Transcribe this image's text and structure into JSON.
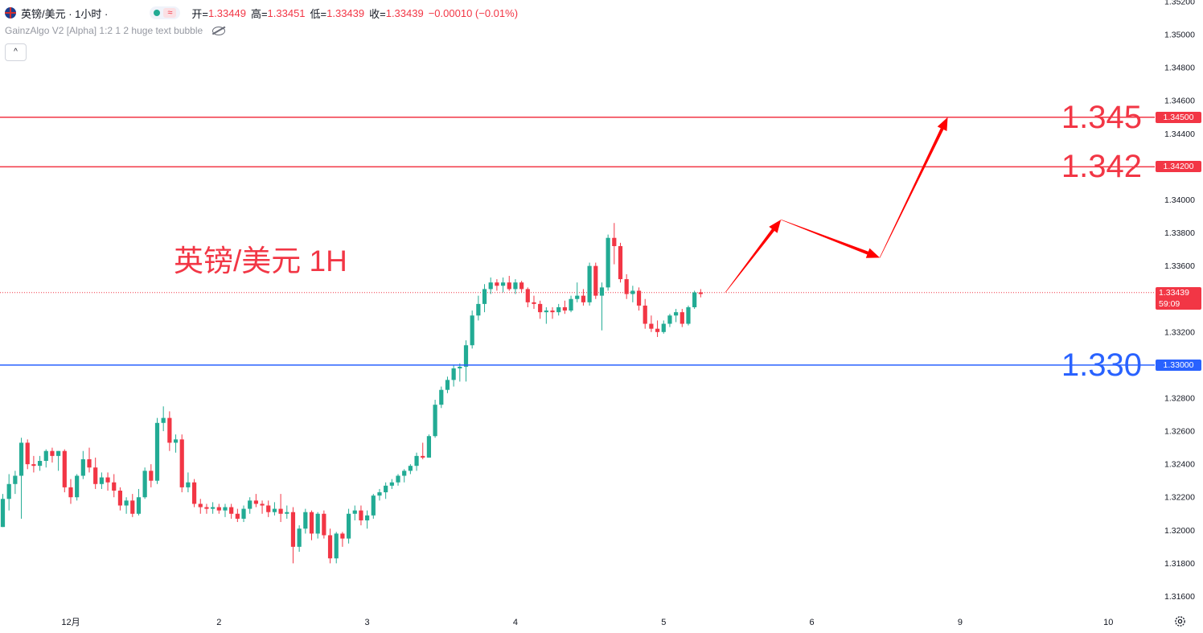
{
  "header": {
    "symbol": "英镑/美元 · 1小时 ·",
    "ohlc": [
      {
        "label": "开=",
        "value": "1.33449"
      },
      {
        "label": "高=",
        "value": "1.33451"
      },
      {
        "label": "低=",
        "value": "1.33439"
      },
      {
        "label": "收=",
        "value": "1.33439"
      }
    ],
    "change": "−0.00010 (−0.01%)",
    "indicator": "GainzAlgo V2 [Alpha] 1:2 1 2 huge text bubble",
    "collapse_glyph": "^"
  },
  "annotation_text": "英镑/美元 1H",
  "colors": {
    "up": "#22ab94",
    "down": "#f23645",
    "resistance": "#f23645",
    "support": "#2962ff",
    "arrow": "#ff0000",
    "axis_text": "#131722",
    "grid": "#ffffff"
  },
  "icons": [
    "uk-flag-icon",
    "eye-slash-icon",
    "chevron-up-icon",
    "gear-icon"
  ],
  "chart_data": {
    "type": "candlestick",
    "title": "英镑/美元 1H",
    "xlabel": "",
    "ylabel": "",
    "ylim": [
      1.315,
      1.352
    ],
    "y_ticks": [
      "1.35200",
      "1.35000",
      "1.34800",
      "1.34600",
      "1.34400",
      "1.34000",
      "1.33800",
      "1.33600",
      "1.33200",
      "1.32800",
      "1.32600",
      "1.32400",
      "1.32200",
      "1.32000",
      "1.31800",
      "1.31600"
    ],
    "x_ticks": [
      {
        "label": "12月",
        "candle_index": 11
      },
      {
        "label": "2",
        "candle_index": 35
      },
      {
        "label": "3",
        "candle_index": 59
      },
      {
        "label": "4",
        "candle_index": 83
      },
      {
        "label": "5",
        "candle_index": 107
      },
      {
        "label": "6",
        "candle_index": 131
      },
      {
        "label": "9",
        "candle_index": 155
      },
      {
        "label": "10",
        "candle_index": 179
      }
    ],
    "candles": [
      [
        1.3202,
        1.3222,
        1.3202,
        1.3219
      ],
      [
        1.3219,
        1.3234,
        1.3212,
        1.3228
      ],
      [
        1.3228,
        1.3236,
        1.3222,
        1.3233
      ],
      [
        1.3233,
        1.3256,
        1.3207,
        1.3253
      ],
      [
        1.3253,
        1.3255,
        1.3237,
        1.324
      ],
      [
        1.324,
        1.3245,
        1.3235,
        1.3239
      ],
      [
        1.3239,
        1.3245,
        1.3236,
        1.3242
      ],
      [
        1.3242,
        1.3249,
        1.3238,
        1.3248
      ],
      [
        1.3248,
        1.325,
        1.3241,
        1.3245
      ],
      [
        1.3245,
        1.3248,
        1.3236,
        1.3248
      ],
      [
        1.3248,
        1.3249,
        1.3223,
        1.3226
      ],
      [
        1.3226,
        1.3231,
        1.3216,
        1.322
      ],
      [
        1.322,
        1.3234,
        1.3218,
        1.3233
      ],
      [
        1.3233,
        1.3248,
        1.3231,
        1.3243
      ],
      [
        1.3243,
        1.325,
        1.3235,
        1.3238
      ],
      [
        1.3238,
        1.3244,
        1.3225,
        1.3228
      ],
      [
        1.3228,
        1.3235,
        1.3225,
        1.3232
      ],
      [
        1.3232,
        1.3235,
        1.3224,
        1.3229
      ],
      [
        1.3229,
        1.3234,
        1.322,
        1.3224
      ],
      [
        1.3224,
        1.3226,
        1.3212,
        1.3215
      ],
      [
        1.3215,
        1.322,
        1.321,
        1.3218
      ],
      [
        1.3218,
        1.3222,
        1.3208,
        1.321
      ],
      [
        1.321,
        1.3225,
        1.3209,
        1.322
      ],
      [
        1.322,
        1.3238,
        1.3219,
        1.3236
      ],
      [
        1.3236,
        1.324,
        1.3226,
        1.323
      ],
      [
        1.323,
        1.3268,
        1.3228,
        1.3265
      ],
      [
        1.3265,
        1.3275,
        1.326,
        1.3268
      ],
      [
        1.3268,
        1.3272,
        1.3248,
        1.3253
      ],
      [
        1.3253,
        1.3258,
        1.3247,
        1.3255
      ],
      [
        1.3255,
        1.3258,
        1.3223,
        1.3226
      ],
      [
        1.3226,
        1.3235,
        1.3223,
        1.3229
      ],
      [
        1.3229,
        1.3231,
        1.3214,
        1.3216
      ],
      [
        1.3216,
        1.3219,
        1.321,
        1.3214
      ],
      [
        1.3214,
        1.3216,
        1.321,
        1.3213
      ],
      [
        1.3213,
        1.3217,
        1.321,
        1.3214
      ],
      [
        1.3214,
        1.3216,
        1.321,
        1.3212
      ],
      [
        1.3212,
        1.3216,
        1.3208,
        1.3214
      ],
      [
        1.3214,
        1.3216,
        1.3207,
        1.321
      ],
      [
        1.321,
        1.3213,
        1.3205,
        1.3207
      ],
      [
        1.3207,
        1.3215,
        1.3205,
        1.3213
      ],
      [
        1.3213,
        1.322,
        1.321,
        1.3218
      ],
      [
        1.3218,
        1.3222,
        1.3214,
        1.3216
      ],
      [
        1.3216,
        1.3218,
        1.321,
        1.3215
      ],
      [
        1.3215,
        1.3218,
        1.3208,
        1.3211
      ],
      [
        1.3211,
        1.3217,
        1.3209,
        1.3213
      ],
      [
        1.3213,
        1.3222,
        1.3205,
        1.321
      ],
      [
        1.321,
        1.3215,
        1.3207,
        1.3211
      ],
      [
        1.3211,
        1.3214,
        1.318,
        1.319
      ],
      [
        1.319,
        1.3203,
        1.3187,
        1.3201
      ],
      [
        1.3201,
        1.3213,
        1.3198,
        1.3211
      ],
      [
        1.3211,
        1.3212,
        1.3194,
        1.3198
      ],
      [
        1.3198,
        1.3211,
        1.3195,
        1.321
      ],
      [
        1.321,
        1.3212,
        1.3195,
        1.3197
      ],
      [
        1.3197,
        1.3201,
        1.318,
        1.3183
      ],
      [
        1.3183,
        1.3199,
        1.318,
        1.3198
      ],
      [
        1.3198,
        1.3199,
        1.319,
        1.3195
      ],
      [
        1.3195,
        1.3213,
        1.3192,
        1.321
      ],
      [
        1.321,
        1.3215,
        1.3206,
        1.3212
      ],
      [
        1.3212,
        1.3215,
        1.3203,
        1.3206
      ],
      [
        1.3206,
        1.3212,
        1.3201,
        1.3209
      ],
      [
        1.3209,
        1.3222,
        1.3207,
        1.3221
      ],
      [
        1.3221,
        1.3225,
        1.3218,
        1.3223
      ],
      [
        1.3223,
        1.3229,
        1.3219,
        1.3227
      ],
      [
        1.3227,
        1.3231,
        1.3225,
        1.3229
      ],
      [
        1.3229,
        1.3234,
        1.3227,
        1.3233
      ],
      [
        1.3233,
        1.3237,
        1.3229,
        1.3236
      ],
      [
        1.3236,
        1.324,
        1.3234,
        1.3239
      ],
      [
        1.3239,
        1.3247,
        1.3236,
        1.3245
      ],
      [
        1.3245,
        1.3253,
        1.3243,
        1.3244
      ],
      [
        1.3244,
        1.3258,
        1.3244,
        1.3257
      ],
      [
        1.3257,
        1.3279,
        1.3256,
        1.3276
      ],
      [
        1.3276,
        1.3287,
        1.3274,
        1.3285
      ],
      [
        1.3285,
        1.3293,
        1.3283,
        1.3291
      ],
      [
        1.3291,
        1.33,
        1.3287,
        1.3298
      ],
      [
        1.3298,
        1.3301,
        1.329,
        1.3299
      ],
      [
        1.3299,
        1.3315,
        1.329,
        1.3312
      ],
      [
        1.3312,
        1.3333,
        1.331,
        1.333
      ],
      [
        1.333,
        1.3342,
        1.3327,
        1.3337
      ],
      [
        1.3337,
        1.3349,
        1.3332,
        1.3346
      ],
      [
        1.3346,
        1.3353,
        1.3343,
        1.335
      ],
      [
        1.335,
        1.3352,
        1.3345,
        1.3348
      ],
      [
        1.3348,
        1.3353,
        1.3344,
        1.335
      ],
      [
        1.335,
        1.3354,
        1.3345,
        1.3346
      ],
      [
        1.3346,
        1.3352,
        1.3343,
        1.335
      ],
      [
        1.335,
        1.3351,
        1.3344,
        1.3346
      ],
      [
        1.3346,
        1.3347,
        1.3335,
        1.3338
      ],
      [
        1.3338,
        1.3342,
        1.3334,
        1.3337
      ],
      [
        1.3337,
        1.3339,
        1.3328,
        1.3332
      ],
      [
        1.3332,
        1.3335,
        1.3325,
        1.3333
      ],
      [
        1.3333,
        1.3335,
        1.3328,
        1.3332
      ],
      [
        1.3332,
        1.3337,
        1.333,
        1.3335
      ],
      [
        1.3335,
        1.3339,
        1.3331,
        1.3333
      ],
      [
        1.3333,
        1.3342,
        1.3332,
        1.334
      ],
      [
        1.334,
        1.335,
        1.3338,
        1.3342
      ],
      [
        1.3342,
        1.3346,
        1.3336,
        1.3338
      ],
      [
        1.3338,
        1.3362,
        1.3336,
        1.336
      ],
      [
        1.336,
        1.3362,
        1.334,
        1.3342
      ],
      [
        1.3342,
        1.335,
        1.3321,
        1.3347
      ],
      [
        1.3347,
        1.3379,
        1.3345,
        1.3377
      ],
      [
        1.3377,
        1.3386,
        1.3361,
        1.3372
      ],
      [
        1.3372,
        1.3374,
        1.335,
        1.3352
      ],
      [
        1.3352,
        1.3355,
        1.334,
        1.3343
      ],
      [
        1.3343,
        1.3348,
        1.3338,
        1.3345
      ],
      [
        1.3345,
        1.3347,
        1.3333,
        1.3336
      ],
      [
        1.3336,
        1.334,
        1.3322,
        1.3325
      ],
      [
        1.3325,
        1.333,
        1.332,
        1.3322
      ],
      [
        1.3322,
        1.3327,
        1.3317,
        1.332
      ],
      [
        1.332,
        1.3327,
        1.3319,
        1.3325
      ],
      [
        1.3325,
        1.3331,
        1.3323,
        1.333
      ],
      [
        1.333,
        1.3334,
        1.3326,
        1.3332
      ],
      [
        1.3332,
        1.3334,
        1.3323,
        1.3325
      ],
      [
        1.3325,
        1.3336,
        1.3324,
        1.3335
      ],
      [
        1.3335,
        1.3345,
        1.3334,
        1.3344
      ],
      [
        1.3344,
        1.3346,
        1.3341,
        1.3343
      ]
    ],
    "horizontal_lines": [
      {
        "price": 1.345,
        "label": "1.345",
        "axis_tag": "1.34500",
        "color": "#f23645"
      },
      {
        "price": 1.342,
        "label": "1.342",
        "axis_tag": "1.34200",
        "color": "#f23645"
      },
      {
        "price": 1.33,
        "label": "1.330",
        "axis_tag": "1.33000",
        "color": "#2962ff"
      }
    ],
    "last_price": {
      "value": 1.33439,
      "label": "1.33439",
      "countdown": "59:09"
    },
    "projection_path": [
      {
        "candle_index": 117,
        "price": 1.3344
      },
      {
        "candle_index": 126,
        "price": 1.3388
      },
      {
        "candle_index": 142,
        "price": 1.3365
      },
      {
        "candle_index": 153,
        "price": 1.345
      }
    ]
  }
}
